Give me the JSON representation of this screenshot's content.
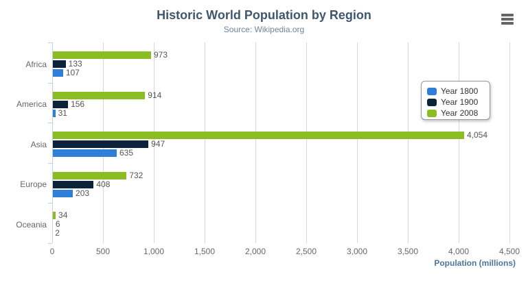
{
  "title": "Historic World Population by Region",
  "subtitle": "Source: Wikipedia.org",
  "context_menu": {
    "icon": "hamburger-icon"
  },
  "chart_data": {
    "type": "bar",
    "orientation": "horizontal",
    "title": "Historic World Population by Region",
    "subtitle": "Source: Wikipedia.org",
    "categories": [
      "Africa",
      "America",
      "Asia",
      "Europe",
      "Oceania"
    ],
    "series": [
      {
        "name": "Year 1800",
        "color": "#2f7ed8",
        "values": [
          107,
          31,
          635,
          203,
          2
        ]
      },
      {
        "name": "Year 1900",
        "color": "#0d233a",
        "values": [
          133,
          156,
          947,
          408,
          6
        ]
      },
      {
        "name": "Year 2008",
        "color": "#8bbc21",
        "values": [
          973,
          914,
          4054,
          732,
          34
        ]
      }
    ],
    "bar_order_top_to_bottom": [
      "Year 2008",
      "Year 1900",
      "Year 1800"
    ],
    "data_labels_shown": true,
    "xlabel": "Population (millions)",
    "ylabel": "",
    "xlim": [
      0,
      4500
    ],
    "x_tick_step": 500,
    "x_tick_labels": [
      "0",
      "500",
      "1,000",
      "1,500",
      "2,000",
      "2,500",
      "3,000",
      "3,500",
      "4,000",
      "4,500"
    ],
    "grid": true,
    "legend": {
      "position": "right",
      "entries": [
        "Year 1800",
        "Year 1900",
        "Year 2008"
      ]
    }
  },
  "colors": {
    "title": "#3E576F",
    "subtitle": "#6D869F",
    "axis_title": "#4d759e",
    "axis_line": "#C0D0E0",
    "gridline": "#D8D8D8",
    "tick_label": "#666666",
    "data_label": "#555555",
    "legend_text": "#333333",
    "menu_icon": "#666666"
  }
}
